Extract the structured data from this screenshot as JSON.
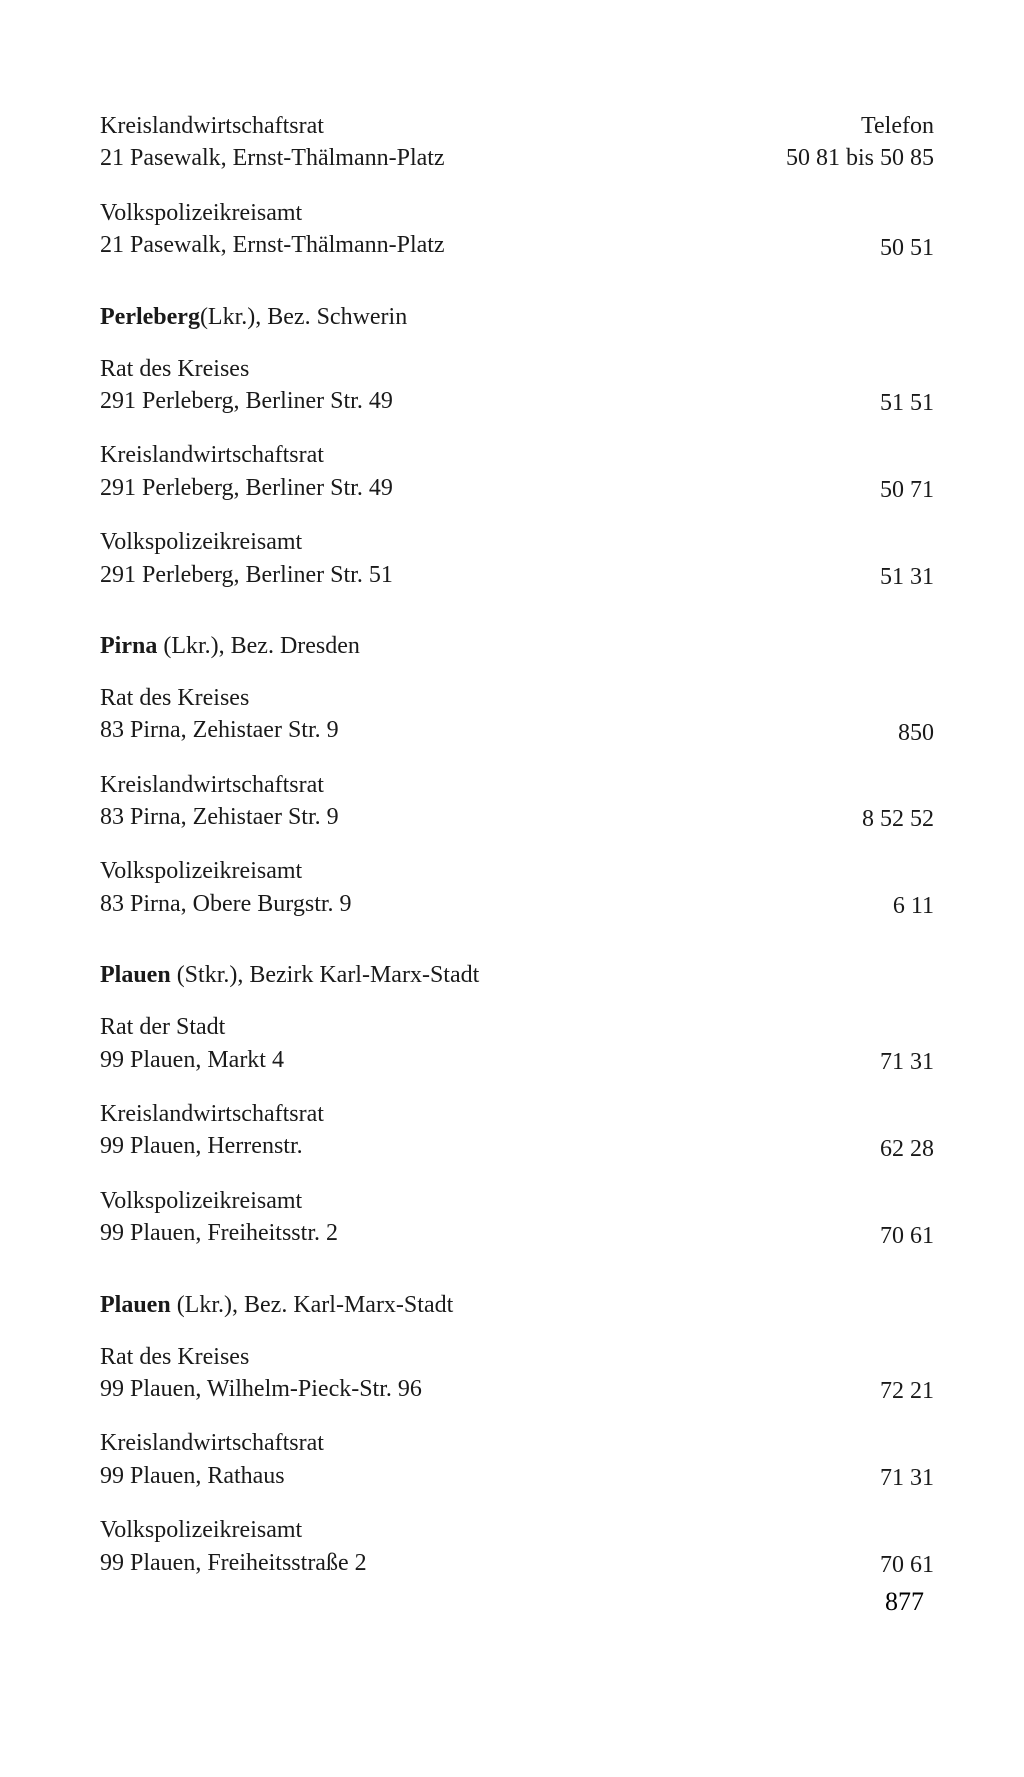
{
  "page_number": "877",
  "header": {
    "right_line1": "Telefon",
    "right_line2": "50 81 bis 50 85"
  },
  "top_entries": [
    {
      "line1": "Kreislandwirtschaftsrat",
      "line2": "21 Pasewalk, Ernst-Thälmann-Platz",
      "phone": ""
    },
    {
      "line1": "Volkspolizeikreisamt",
      "line2": "21 Pasewalk, Ernst-Thälmann-Platz",
      "phone": "50 51"
    }
  ],
  "sections": [
    {
      "title_bold": "Perleberg",
      "title_rest": "(Lkr.), Bez. Schwerin",
      "entries": [
        {
          "line1": "Rat des Kreises",
          "line2": "291 Perleberg, Berliner Str. 49",
          "phone": "51 51"
        },
        {
          "line1": "Kreislandwirtschaftsrat",
          "line2": "291 Perleberg, Berliner Str. 49",
          "phone": "50 71"
        },
        {
          "line1": "Volkspolizeikreisamt",
          "line2": "291 Perleberg, Berliner Str. 51",
          "phone": "51 31"
        }
      ]
    },
    {
      "title_bold": "Pirna",
      "title_rest": " (Lkr.), Bez. Dresden",
      "entries": [
        {
          "line1": "Rat des Kreises",
          "line2": "83 Pirna, Zehistaer Str. 9",
          "phone": "850"
        },
        {
          "line1": "Kreislandwirtschaftsrat",
          "line2": "83 Pirna, Zehistaer Str. 9",
          "phone": "8 52 52"
        },
        {
          "line1": "Volkspolizeikreisamt",
          "line2": "83 Pirna, Obere Burgstr. 9",
          "phone": "6 11"
        }
      ]
    },
    {
      "title_bold": "Plauen",
      "title_rest": " (Stkr.), Bezirk Karl-Marx-Stadt",
      "entries": [
        {
          "line1": "Rat der Stadt",
          "line2": "99 Plauen, Markt 4",
          "phone": "71 31"
        },
        {
          "line1": "Kreislandwirtschaftsrat",
          "line2": "99 Plauen, Herrenstr.",
          "phone": "62 28"
        },
        {
          "line1": "Volkspolizeikreisamt",
          "line2": "99 Plauen, Freiheitsstr. 2",
          "phone": "70 61"
        }
      ]
    },
    {
      "title_bold": "Plauen",
      "title_rest": " (Lkr.), Bez. Karl-Marx-Stadt",
      "entries": [
        {
          "line1": "Rat des Kreises",
          "line2": "99 Plauen, Wilhelm-Pieck-Str. 96",
          "phone": "72 21"
        },
        {
          "line1": "Kreislandwirtschaftsrat",
          "line2": "99 Plauen, Rathaus",
          "phone": "71 31"
        },
        {
          "line1": "Volkspolizeikreisamt",
          "line2": "99 Plauen, Freiheitsstraße 2",
          "phone": "70 61"
        }
      ]
    }
  ]
}
